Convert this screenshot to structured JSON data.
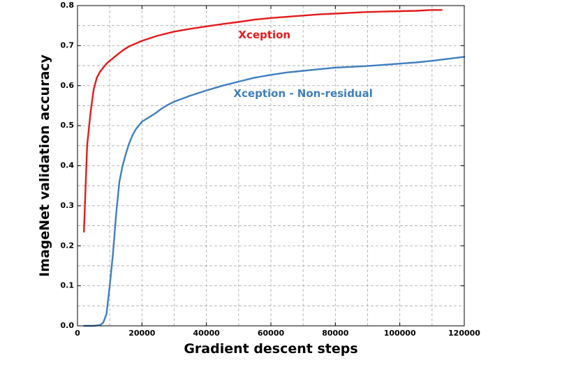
{
  "chart_data": {
    "type": "line",
    "title": "",
    "xlabel": "Gradient descent steps",
    "ylabel": "ImageNet validation accuracy",
    "xlim": [
      0,
      120000
    ],
    "ylim": [
      0.0,
      0.8
    ],
    "xticks": [
      0,
      20000,
      40000,
      60000,
      80000,
      100000,
      120000
    ],
    "xtick_labels": [
      "0",
      "20000",
      "40000",
      "60000",
      "80000",
      "100000",
      "120000"
    ],
    "yticks": [
      0.0,
      0.1,
      0.2,
      0.3,
      0.4,
      0.5,
      0.6,
      0.7,
      0.8
    ],
    "ytick_labels": [
      "0.0",
      "0.1",
      "0.2",
      "0.3",
      "0.4",
      "0.5",
      "0.6",
      "0.7",
      "0.8"
    ],
    "x_minor_step": 10000,
    "y_minor_step": 0.05,
    "grid": true,
    "legend": "inline-labels",
    "series": [
      {
        "name": "Xception",
        "color": "#e41a1c",
        "label_at": [
          58000,
          0.718
        ],
        "x": [
          2000,
          3000,
          4000,
          5000,
          6000,
          7000,
          8000,
          9000,
          10000,
          12000,
          14000,
          16000,
          18000,
          20000,
          25000,
          30000,
          35000,
          40000,
          45000,
          50000,
          55000,
          60000,
          65000,
          70000,
          75000,
          80000,
          85000,
          90000,
          95000,
          100000,
          105000,
          110000,
          113000
        ],
        "y": [
          0.235,
          0.45,
          0.53,
          0.59,
          0.62,
          0.635,
          0.645,
          0.655,
          0.662,
          0.675,
          0.688,
          0.698,
          0.705,
          0.712,
          0.725,
          0.735,
          0.742,
          0.748,
          0.754,
          0.759,
          0.765,
          0.769,
          0.772,
          0.775,
          0.778,
          0.78,
          0.782,
          0.784,
          0.785,
          0.786,
          0.787,
          0.789,
          0.789
        ]
      },
      {
        "name": "Xception - Non-residual",
        "color": "#3f7fbf",
        "label_at": [
          70000,
          0.572
        ],
        "x": [
          2000,
          5000,
          7000,
          8000,
          9000,
          10000,
          11000,
          12000,
          13000,
          14000,
          15000,
          16000,
          17000,
          18000,
          19000,
          20000,
          22000,
          24000,
          26000,
          28000,
          30000,
          35000,
          40000,
          45000,
          50000,
          55000,
          60000,
          65000,
          70000,
          75000,
          80000,
          85000,
          90000,
          95000,
          100000,
          105000,
          110000,
          115000,
          120000
        ],
        "y": [
          0.0,
          0.0,
          0.002,
          0.008,
          0.03,
          0.1,
          0.18,
          0.28,
          0.36,
          0.4,
          0.43,
          0.455,
          0.475,
          0.49,
          0.5,
          0.51,
          0.52,
          0.53,
          0.542,
          0.552,
          0.56,
          0.575,
          0.588,
          0.6,
          0.61,
          0.62,
          0.627,
          0.633,
          0.637,
          0.641,
          0.645,
          0.647,
          0.649,
          0.652,
          0.655,
          0.658,
          0.662,
          0.667,
          0.672
        ]
      }
    ]
  }
}
